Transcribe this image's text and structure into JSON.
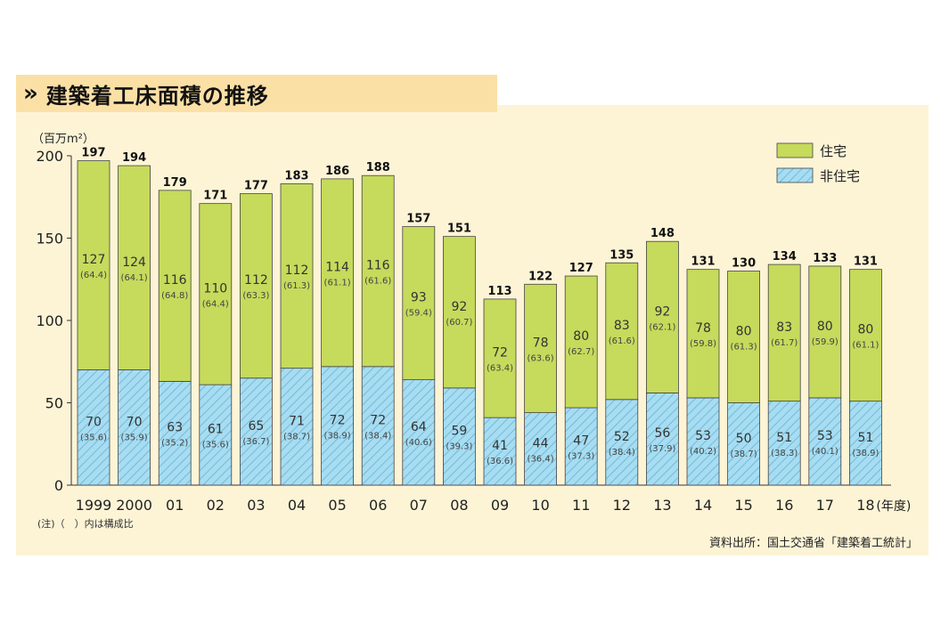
{
  "title": "建築着工床面積の推移",
  "chart_data": {
    "type": "bar",
    "stacked": true,
    "title": "建築着工床面積の推移",
    "ylabel": "（百万m²）",
    "xunit": "(年度)",
    "ylim": [
      0,
      200
    ],
    "yticks": [
      0,
      50,
      100,
      150,
      200
    ],
    "categories": [
      "1999",
      "2000",
      "01",
      "02",
      "03",
      "04",
      "05",
      "06",
      "07",
      "08",
      "09",
      "10",
      "11",
      "12",
      "13",
      "14",
      "15",
      "16",
      "17",
      "18"
    ],
    "totals": [
      197,
      194,
      179,
      171,
      177,
      183,
      186,
      188,
      157,
      151,
      113,
      122,
      127,
      135,
      148,
      131,
      130,
      134,
      133,
      131
    ],
    "series": [
      {
        "name": "非住宅",
        "color": "#9fd8ee",
        "pattern": "hatch",
        "values": [
          70,
          70,
          63,
          61,
          65,
          71,
          72,
          72,
          64,
          59,
          41,
          44,
          47,
          52,
          56,
          53,
          50,
          51,
          53,
          51
        ],
        "shares": [
          "(35.6)",
          "(35.9)",
          "(35.2)",
          "(35.6)",
          "(36.7)",
          "(38.7)",
          "(38.9)",
          "(38.4)",
          "(40.6)",
          "(39.3)",
          "(36.6)",
          "(36.4)",
          "(37.3)",
          "(38.4)",
          "(37.9)",
          "(40.2)",
          "(38.7)",
          "(38.3)",
          "(40.1)",
          "(38.9)"
        ]
      },
      {
        "name": "住宅",
        "color": "#c6da5c",
        "pattern": "solid",
        "values": [
          127,
          124,
          116,
          110,
          112,
          112,
          114,
          116,
          93,
          92,
          72,
          78,
          80,
          83,
          92,
          78,
          80,
          83,
          80,
          80
        ],
        "shares": [
          "(64.4)",
          "(64.1)",
          "(64.8)",
          "(64.4)",
          "(63.3)",
          "(61.3)",
          "(61.1)",
          "(61.6)",
          "(59.4)",
          "(60.7)",
          "(63.4)",
          "(63.6)",
          "(62.7)",
          "(61.6)",
          "(62.1)",
          "(59.8)",
          "(61.3)",
          "(61.7)",
          "(59.9)",
          "(61.1)"
        ]
      }
    ],
    "legend": [
      "住宅",
      "非住宅"
    ],
    "legend_position": "top-right",
    "notes": "(注)（　）内は構成比",
    "source": "資料出所：国土交通省「建築着工統計」"
  }
}
